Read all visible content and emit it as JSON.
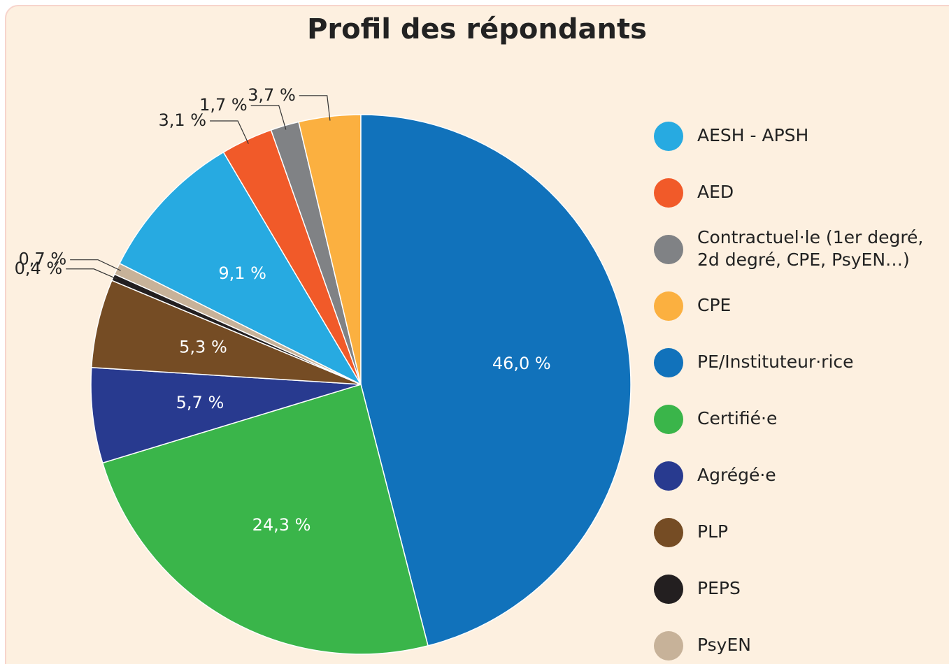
{
  "chart_data": {
    "type": "pie",
    "title": "Profil des répondants",
    "categories": [
      "AESH - APSH",
      "AED",
      "Contractuel·le (1er degré, 2d degré, CPE, PsyEN…)",
      "CPE",
      "PE/Instituteur·rice",
      "Certifié·e",
      "Agrégé·e",
      "PLP",
      "PEPS",
      "PsyEN"
    ],
    "values": [
      9.1,
      3.1,
      1.7,
      3.7,
      46.0,
      24.3,
      5.7,
      5.3,
      0.4,
      0.7
    ],
    "value_labels": [
      "9,1 %",
      "3,1 %",
      "1,7 %",
      "3,7 %",
      "46,0 %",
      "24,3 %",
      "5,7 %",
      "5,3 %",
      "0,4 %",
      "0,7 %"
    ],
    "colors": [
      "#27aae1",
      "#f15a29",
      "#808285",
      "#fbb040",
      "#1172bb",
      "#3ab54a",
      "#283a8f",
      "#754c24",
      "#231f20",
      "#c7b299"
    ],
    "legend": "right"
  }
}
